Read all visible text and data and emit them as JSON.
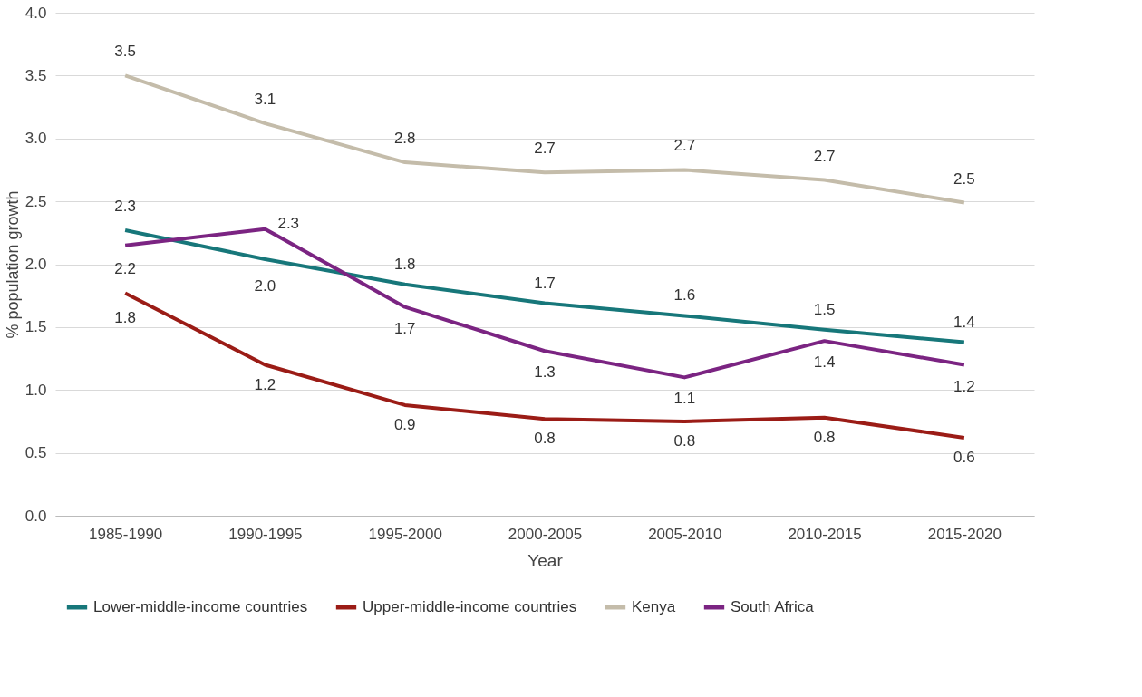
{
  "chart_data": {
    "type": "line",
    "xlabel": "Year",
    "ylabel": "% population growth",
    "categories": [
      "1985-1990",
      "1990-1995",
      "1995-2000",
      "2000-2005",
      "2005-2010",
      "2010-2015",
      "2015-2020"
    ],
    "series": [
      {
        "name": "Lower-middle-income countries",
        "color": "#17777a",
        "values": [
          2.27,
          2.04,
          1.84,
          1.69,
          1.59,
          1.48,
          1.38
        ],
        "value_labels": [
          "2.3",
          "2.0",
          "1.8",
          "1.7",
          "1.6",
          "1.5",
          "1.4"
        ]
      },
      {
        "name": "Upper-middle-income countries",
        "color": "#9b1c16",
        "values": [
          1.77,
          1.2,
          0.88,
          0.77,
          0.75,
          0.78,
          0.62
        ],
        "value_labels": [
          "1.8",
          "1.2",
          "0.9",
          "0.8",
          "0.8",
          "0.8",
          "0.6"
        ]
      },
      {
        "name": "Kenya",
        "color": "#c4bcaa",
        "values": [
          3.5,
          3.12,
          2.81,
          2.73,
          2.75,
          2.67,
          2.49
        ],
        "value_labels": [
          "3.5",
          "3.1",
          "2.8",
          "2.7",
          "2.7",
          "2.7",
          "2.5"
        ]
      },
      {
        "name": "South Africa",
        "color": "#7b2482",
        "values": [
          2.15,
          2.28,
          1.66,
          1.31,
          1.1,
          1.39,
          1.2
        ],
        "value_labels": [
          "2.2",
          "2.3",
          "1.7",
          "1.3",
          "1.1",
          "1.4",
          "1.2"
        ]
      }
    ],
    "ylim": [
      0,
      4
    ],
    "yticks": [
      {
        "value": 0,
        "label": "0.0"
      },
      0.5,
      {
        "value": 1,
        "label": "1.0"
      },
      1.5,
      {
        "value": 2,
        "label": "2.0"
      },
      2.5,
      {
        "value": 3,
        "label": "3.0"
      },
      3.5,
      {
        "value": 4,
        "label": "4.0"
      }
    ],
    "grid": "y",
    "legend": "bottom",
    "marker": "none",
    "line_style": "solid"
  }
}
